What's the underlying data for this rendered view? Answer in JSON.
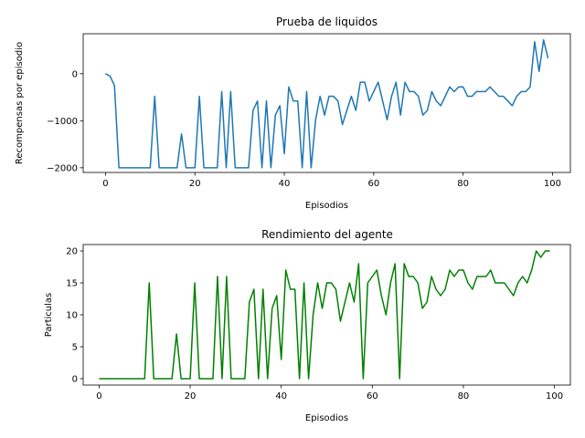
{
  "chart_data": [
    {
      "type": "line",
      "title": "Prueba de liquidos",
      "xlabel": "Episodios",
      "ylabel": "Recompensas por episodio",
      "xlim": [
        -5,
        104
      ],
      "ylim": [
        -2100,
        850
      ],
      "xticks": [
        0,
        20,
        40,
        60,
        80,
        100
      ],
      "yticks": [
        -2000,
        -1000,
        0
      ],
      "ytick_labels": [
        "−2000",
        "−1000",
        "0"
      ],
      "grid": false,
      "color": "#1f77b4",
      "series": [
        {
          "x": [
            0,
            1,
            2,
            3,
            4,
            5,
            6,
            7,
            8,
            9,
            10,
            11,
            12,
            13,
            14,
            15,
            16,
            17,
            18,
            19,
            20,
            21,
            22,
            23,
            24,
            25,
            26,
            27,
            28,
            29,
            30,
            31,
            32,
            33,
            34,
            35,
            36,
            37,
            38,
            39,
            40,
            41,
            42,
            43,
            44,
            45,
            46,
            47,
            48,
            49,
            50,
            51,
            52,
            53,
            54,
            55,
            56,
            57,
            58,
            59,
            60,
            61,
            62,
            63,
            64,
            65,
            66,
            67,
            68,
            69,
            70,
            71,
            72,
            73,
            74,
            75,
            76,
            77,
            78,
            79,
            80,
            81,
            82,
            83,
            84,
            85,
            86,
            87,
            88,
            89,
            90,
            91,
            92,
            93,
            94,
            95,
            96,
            97,
            98,
            99
          ],
          "values": [
            0,
            -50,
            -250,
            -2000,
            -2000,
            -2000,
            -2000,
            -2000,
            -2000,
            -2000,
            -2000,
            -480,
            -2000,
            -2000,
            -2000,
            -2000,
            -2000,
            -1280,
            -2000,
            -2000,
            -2000,
            -480,
            -2000,
            -2000,
            -2000,
            -2000,
            -380,
            -2000,
            -380,
            -2000,
            -2000,
            -2000,
            -2000,
            -780,
            -580,
            -2000,
            -580,
            -2000,
            -880,
            -680,
            -1700,
            -280,
            -580,
            -580,
            -2000,
            -380,
            -2000,
            -980,
            -480,
            -880,
            -480,
            -480,
            -580,
            -1080,
            -780,
            -480,
            -780,
            -180,
            -180,
            -580,
            -380,
            -180,
            -580,
            -980,
            -480,
            -180,
            -880,
            -180,
            -380,
            -380,
            -480,
            -880,
            -780,
            -380,
            -580,
            -680,
            -480,
            -280,
            -380,
            -280,
            -280,
            -480,
            -480,
            -380,
            -380,
            -380,
            -280,
            -380,
            -480,
            -480,
            -580,
            -680,
            -480,
            -380,
            -380,
            -280,
            680,
            50,
            720,
            330
          ]
        }
      ]
    },
    {
      "type": "line",
      "title": "Rendimiento del agente",
      "xlabel": "Episodios",
      "ylabel": "Particulas",
      "xlim": [
        -3.5,
        103.5
      ],
      "ylim": [
        -1,
        21
      ],
      "xticks": [
        0,
        20,
        40,
        60,
        80,
        100
      ],
      "yticks": [
        0,
        5,
        10,
        15,
        20
      ],
      "ytick_labels": [
        "0",
        "5",
        "10",
        "15",
        "20"
      ],
      "grid": false,
      "color": "#008000",
      "series": [
        {
          "x": [
            0,
            1,
            2,
            3,
            4,
            5,
            6,
            7,
            8,
            9,
            10,
            11,
            12,
            13,
            14,
            15,
            16,
            17,
            18,
            19,
            20,
            21,
            22,
            23,
            24,
            25,
            26,
            27,
            28,
            29,
            30,
            31,
            32,
            33,
            34,
            35,
            36,
            37,
            38,
            39,
            40,
            41,
            42,
            43,
            44,
            45,
            46,
            47,
            48,
            49,
            50,
            51,
            52,
            53,
            54,
            55,
            56,
            57,
            58,
            59,
            60,
            61,
            62,
            63,
            64,
            65,
            66,
            67,
            68,
            69,
            70,
            71,
            72,
            73,
            74,
            75,
            76,
            77,
            78,
            79,
            80,
            81,
            82,
            83,
            84,
            85,
            86,
            87,
            88,
            89,
            90,
            91,
            92,
            93,
            94,
            95,
            96,
            97,
            98,
            99
          ],
          "values": [
            0,
            0,
            0,
            0,
            0,
            0,
            0,
            0,
            0,
            0,
            0,
            15,
            0,
            0,
            0,
            0,
            0,
            7,
            0,
            0,
            0,
            15,
            0,
            0,
            0,
            0,
            16,
            0,
            16,
            0,
            0,
            0,
            0,
            12,
            14,
            0,
            14,
            0,
            11,
            13,
            3,
            17,
            14,
            14,
            0,
            15,
            0,
            10,
            15,
            11,
            15,
            15,
            14,
            9,
            12,
            15,
            12,
            18,
            0,
            15,
            16,
            17,
            13,
            10,
            15,
            18,
            0,
            18,
            16,
            16,
            15,
            11,
            12,
            16,
            14,
            13,
            14,
            17,
            16,
            17,
            17,
            15,
            14,
            16,
            16,
            16,
            17,
            15,
            15,
            15,
            14,
            13,
            15,
            16,
            15,
            17,
            20,
            19,
            20,
            20
          ]
        }
      ]
    }
  ]
}
